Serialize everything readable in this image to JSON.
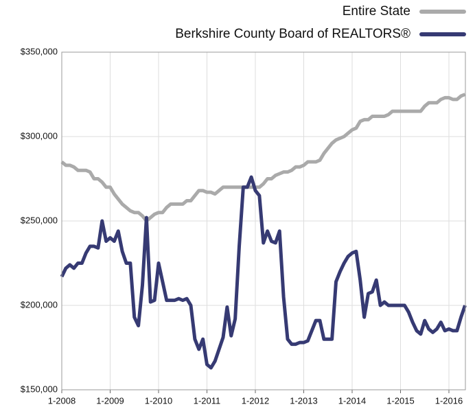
{
  "chart_data": {
    "type": "line",
    "categories": [
      "1-2008",
      null,
      null,
      null,
      null,
      null,
      null,
      null,
      null,
      null,
      null,
      null,
      "1-2009",
      null,
      null,
      null,
      null,
      null,
      null,
      null,
      null,
      null,
      null,
      null,
      "1-2010",
      null,
      null,
      null,
      null,
      null,
      null,
      null,
      null,
      null,
      null,
      null,
      "1-2011",
      null,
      null,
      null,
      null,
      null,
      null,
      null,
      null,
      null,
      null,
      null,
      "1-2012",
      null,
      null,
      null,
      null,
      null,
      null,
      null,
      null,
      null,
      null,
      null,
      "1-2013",
      null,
      null,
      null,
      null,
      null,
      null,
      null,
      null,
      null,
      null,
      null,
      "1-2014",
      null,
      null,
      null,
      null,
      null,
      null,
      null,
      null,
      null,
      null,
      null,
      "1-2015",
      null,
      null,
      null,
      null,
      null,
      null,
      null,
      null,
      null,
      null,
      null,
      "1-2016",
      null,
      null,
      null,
      null
    ],
    "series": [
      {
        "name": "Entire State",
        "color": "#aaaaaa",
        "values": [
          285000,
          283000,
          283000,
          282000,
          280000,
          280000,
          280000,
          279000,
          275000,
          275000,
          273000,
          270000,
          270000,
          266000,
          263000,
          260000,
          258000,
          256000,
          255000,
          255000,
          253000,
          250000,
          252000,
          254000,
          255000,
          255000,
          258000,
          260000,
          260000,
          260000,
          260000,
          262000,
          262000,
          265000,
          268000,
          268000,
          267000,
          267000,
          266000,
          268000,
          270000,
          270000,
          270000,
          270000,
          270000,
          270000,
          270000,
          270000,
          270000,
          270000,
          272000,
          275000,
          275000,
          277000,
          278000,
          279000,
          279000,
          280000,
          282000,
          282000,
          283000,
          285000,
          285000,
          285000,
          286000,
          290000,
          293000,
          296000,
          298000,
          299000,
          300000,
          302000,
          304000,
          305000,
          309000,
          310000,
          310000,
          312000,
          312000,
          312000,
          312000,
          313000,
          315000,
          315000,
          315000,
          315000,
          315000,
          315000,
          315000,
          315000,
          318000,
          320000,
          320000,
          320000,
          322000,
          323000,
          323000,
          322000,
          322000,
          324000,
          325000
        ]
      },
      {
        "name": "Berkshire County Board of REALTORS®",
        "color": "#363a73",
        "values": [
          217000,
          222000,
          224000,
          222000,
          225000,
          225000,
          231000,
          235000,
          235000,
          234000,
          250000,
          238000,
          240000,
          238000,
          244000,
          232000,
          225000,
          225000,
          193000,
          188000,
          212000,
          252000,
          202000,
          203000,
          225000,
          214000,
          203000,
          203000,
          203000,
          204000,
          203000,
          204000,
          200000,
          180000,
          174000,
          180000,
          165000,
          163000,
          167000,
          174000,
          181000,
          199000,
          182000,
          192000,
          235000,
          270000,
          270000,
          276000,
          268000,
          265000,
          237000,
          244000,
          238000,
          237000,
          244000,
          205000,
          180000,
          177000,
          177000,
          178000,
          178000,
          179000,
          185000,
          191000,
          191000,
          180000,
          180000,
          180000,
          214000,
          220000,
          225000,
          229000,
          231000,
          232000,
          215000,
          193000,
          207000,
          208000,
          215000,
          200000,
          202000,
          200000,
          200000,
          200000,
          200000,
          200000,
          196000,
          190000,
          185000,
          183000,
          191000,
          186000,
          184000,
          186000,
          190000,
          185000,
          186000,
          185000,
          185000,
          193000,
          200000
        ]
      }
    ],
    "ylim": [
      150000,
      350000
    ],
    "yticks": [
      {
        "value": 150000,
        "label": "$150,000"
      },
      {
        "value": 200000,
        "label": "$200,000"
      },
      {
        "value": 250000,
        "label": "$250,000"
      },
      {
        "value": 300000,
        "label": "$300,000"
      },
      {
        "value": 350000,
        "label": "$350,000"
      }
    ],
    "grid": true,
    "legend": "top-right"
  }
}
